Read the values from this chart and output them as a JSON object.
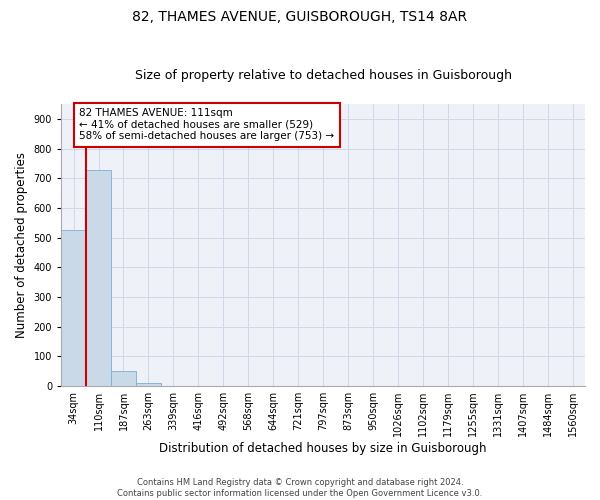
{
  "title1": "82, THAMES AVENUE, GUISBOROUGH, TS14 8AR",
  "title2": "Size of property relative to detached houses in Guisborough",
  "xlabel": "Distribution of detached houses by size in Guisborough",
  "ylabel": "Number of detached properties",
  "footer1": "Contains HM Land Registry data © Crown copyright and database right 2024.",
  "footer2": "Contains public sector information licensed under the Open Government Licence v3.0.",
  "bin_labels": [
    "34sqm",
    "110sqm",
    "187sqm",
    "263sqm",
    "339sqm",
    "416sqm",
    "492sqm",
    "568sqm",
    "644sqm",
    "721sqm",
    "797sqm",
    "873sqm",
    "950sqm",
    "1026sqm",
    "1102sqm",
    "1179sqm",
    "1255sqm",
    "1331sqm",
    "1407sqm",
    "1484sqm",
    "1560sqm"
  ],
  "bar_values": [
    524,
    727,
    50,
    10,
    1,
    0,
    0,
    0,
    0,
    0,
    0,
    1,
    0,
    0,
    0,
    0,
    0,
    0,
    0,
    0,
    0
  ],
  "bar_color": "#c9d9e8",
  "bar_edge_color": "#7bafd4",
  "red_line_color": "#cc0000",
  "annotation_text": "82 THAMES AVENUE: 111sqm\n← 41% of detached houses are smaller (529)\n58% of semi-detached houses are larger (753) →",
  "annotation_box_color": "#cc0000",
  "ylim": [
    0,
    950
  ],
  "yticks": [
    0,
    100,
    200,
    300,
    400,
    500,
    600,
    700,
    800,
    900
  ],
  "grid_color": "#d0d8e8",
  "bg_color": "#eef2f8",
  "title1_fontsize": 10,
  "title2_fontsize": 9,
  "axis_label_fontsize": 8.5,
  "tick_fontsize": 7,
  "annotation_fontsize": 7.5,
  "footer_fontsize": 6
}
